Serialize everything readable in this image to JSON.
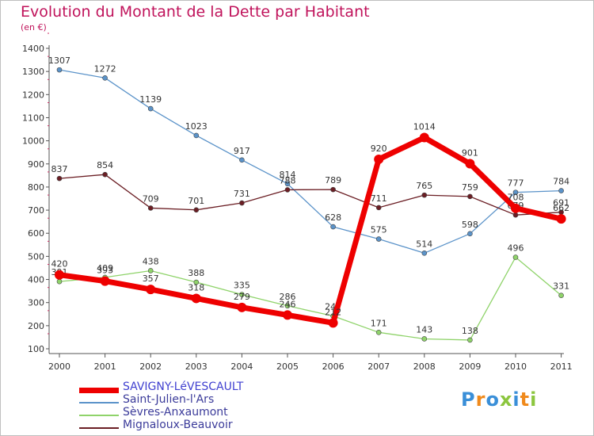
{
  "title": "Evolution du Montant de la Dette par Habitant",
  "unit": "(en €)",
  "logo": {
    "letters": [
      "P",
      "r",
      "o",
      "x",
      "i",
      "t",
      "i"
    ],
    "colors": [
      "#3a8fd8",
      "#f08a1c",
      "#3a8fd8",
      "#8cc63f",
      "#3a8fd8",
      "#f08a1c",
      "#8cc63f"
    ]
  },
  "chart_data": {
    "type": "line",
    "x": [
      "2000",
      "2001",
      "2002",
      "2003",
      "2004",
      "2005",
      "2006",
      "2007",
      "2008",
      "2009",
      "2010",
      "2011"
    ],
    "ylim": [
      100,
      1400
    ],
    "yticks": [
      100,
      200,
      300,
      400,
      500,
      600,
      700,
      800,
      900,
      1000,
      1100,
      1200,
      1300,
      1400
    ],
    "grid": false,
    "legend_position": "bottom-left",
    "series": [
      {
        "name": "SAVIGNY-LéVESCAULT",
        "color": "#ee0000",
        "values": [
          420,
          393,
          357,
          318,
          279,
          246,
          212,
          920,
          1014,
          901,
          708,
          662
        ]
      },
      {
        "name": "Saint-Julien-l'Ars",
        "color": "#5b93c9",
        "values": [
          1307,
          1272,
          1139,
          1023,
          917,
          814,
          628,
          575,
          514,
          598,
          777,
          784
        ]
      },
      {
        "name": "Sèvres-Anxaumont",
        "color": "#8fd36a",
        "values": [
          391,
          409,
          438,
          388,
          335,
          286,
          242,
          171,
          143,
          138,
          496,
          331
        ]
      },
      {
        "name": "Mignaloux-Beauvoir",
        "color": "#6b1e24",
        "values": [
          837,
          854,
          709,
          701,
          731,
          788,
          789,
          711,
          765,
          759,
          679,
          691
        ]
      }
    ]
  }
}
